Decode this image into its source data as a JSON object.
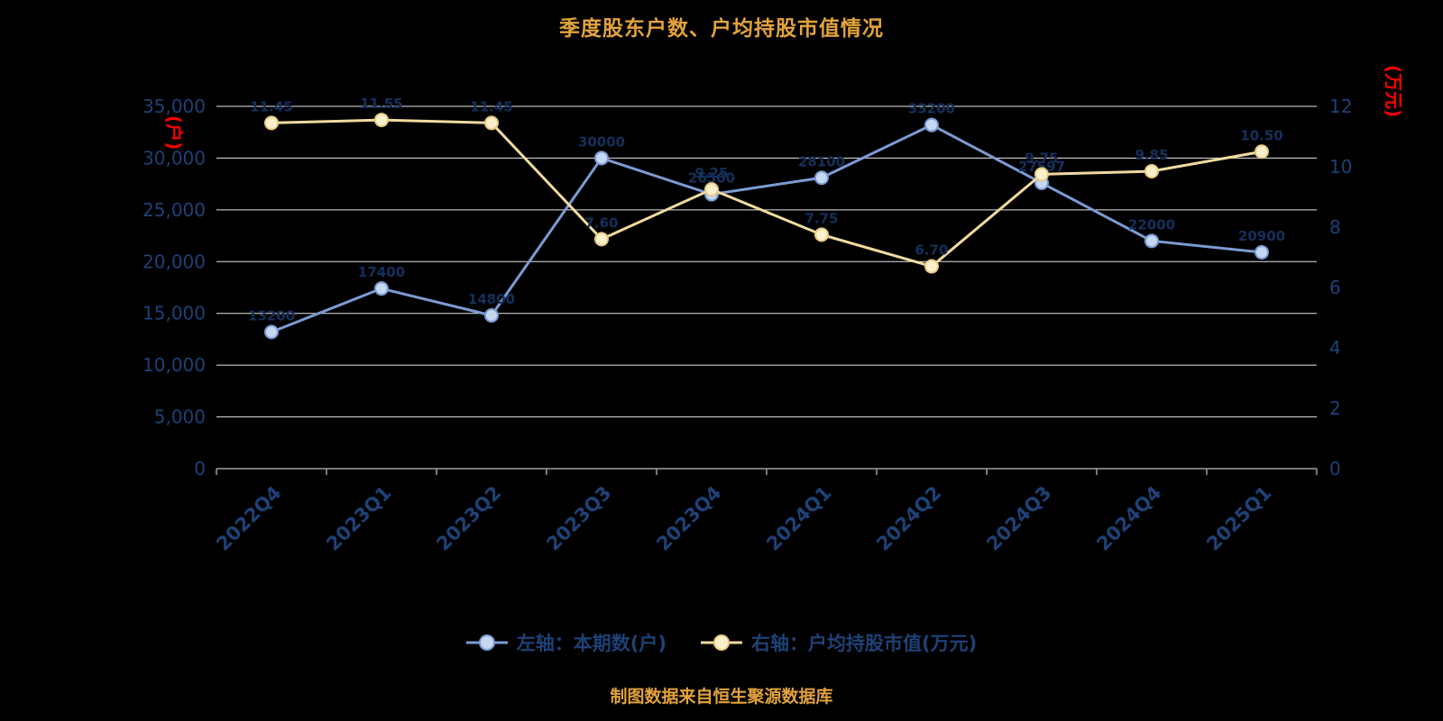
{
  "title": "季度股东户数、户均持股市值情况",
  "footer": "制图数据来自恒生聚源数据库",
  "legend": [
    {
      "label": "左轴：本期数(户)"
    },
    {
      "label": "右轴：户均持股市值(万元)"
    }
  ],
  "series_styles": [
    {
      "line": "#7C9BD3",
      "marker_fill": "#C5D7F1",
      "marker_stroke": "#7C9BD3"
    },
    {
      "line": "#F0DA9E",
      "marker_fill": "#FAF0CB",
      "marker_stroke": "#E8CC85"
    }
  ],
  "colors": {
    "background": "#000000",
    "title": "#E2A23C",
    "footer": "#E2A23C",
    "axis_text": "#1E4176",
    "legend_text": "#1E4176",
    "point_label": "#14305A",
    "unit_red": "#FF0000",
    "grid": "#FFFFFF",
    "axis_line": "#9AA0A6"
  },
  "chart_data": {
    "type": "line",
    "categories": [
      "2022Q4",
      "2023Q1",
      "2023Q2",
      "2023Q3",
      "2023Q4",
      "2024Q1",
      "2024Q2",
      "2024Q3",
      "2024Q4",
      "2025Q1"
    ],
    "left_axis": {
      "unit": "(户)",
      "min": 0,
      "max": 35000,
      "step": 5000,
      "tick_labels": [
        "0",
        "5,000",
        "10,000",
        "15,000",
        "20,000",
        "25,000",
        "30,000",
        "35,000"
      ]
    },
    "right_axis": {
      "unit": "(万元)",
      "min": 0,
      "max": 12,
      "step": 2,
      "tick_labels": [
        "0",
        "2",
        "4",
        "6",
        "8",
        "10",
        "12"
      ]
    },
    "grid": true,
    "legend_position": "bottom",
    "series": [
      {
        "name": "左轴：本期数(户)",
        "axis": "left",
        "values": [
          13200,
          17400,
          14800,
          30000,
          26500,
          28100,
          33200,
          27597,
          22000,
          20900
        ],
        "labels": [
          "13200",
          "17400",
          "14800",
          "30000",
          "26500",
          "28100",
          "33200",
          "27597",
          "22000",
          "20900"
        ]
      },
      {
        "name": "右轴：户均持股市值(万元)",
        "axis": "right",
        "values": [
          11.45,
          11.55,
          11.45,
          7.6,
          9.25,
          7.75,
          6.7,
          9.75,
          9.85,
          10.5
        ],
        "labels": [
          "11.45",
          "11.55",
          "11.45",
          "7.60",
          "9.25",
          "7.75",
          "6.70",
          "9.75",
          "9.85",
          "10.50"
        ]
      }
    ]
  }
}
